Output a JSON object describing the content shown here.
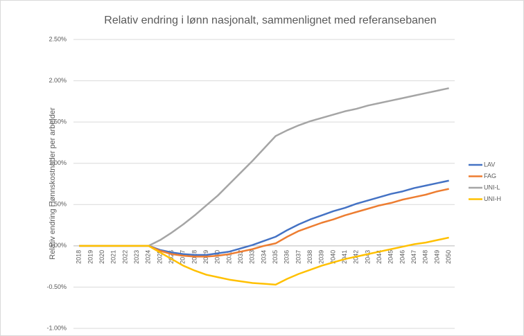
{
  "chart_data": {
    "type": "line",
    "title": "Relativ endring i lønn nasjonalt, sammenlignet med referansebanen",
    "y_label": "Relativ endring i lønnskostnader per arbeider",
    "categories": [
      "2018",
      "2019",
      "2020",
      "2021",
      "2022",
      "2023",
      "2024",
      "2025",
      "2026",
      "2027",
      "2028",
      "2029",
      "2030",
      "2031",
      "2032",
      "2033",
      "2034",
      "2035",
      "2036",
      "2037",
      "2038",
      "2039",
      "2040",
      "2041",
      "2042",
      "2043",
      "2044",
      "2045",
      "2046",
      "2047",
      "2048",
      "2049",
      "2050"
    ],
    "series": [
      {
        "name": "LAV",
        "color": "#4472c4",
        "values": [
          0,
          0,
          0,
          0,
          0,
          0,
          0,
          -0.05,
          -0.08,
          -0.1,
          -0.11,
          -0.11,
          -0.09,
          -0.07,
          -0.03,
          0.01,
          0.06,
          0.11,
          0.19,
          0.26,
          0.32,
          0.37,
          0.42,
          0.46,
          0.51,
          0.55,
          0.59,
          0.63,
          0.66,
          0.7,
          0.73,
          0.76,
          0.79
        ]
      },
      {
        "name": "FAG",
        "color": "#ed7d31",
        "values": [
          0,
          0,
          0,
          0,
          0,
          0,
          0,
          -0.06,
          -0.1,
          -0.12,
          -0.13,
          -0.13,
          -0.12,
          -0.1,
          -0.07,
          -0.04,
          0.0,
          0.03,
          0.11,
          0.18,
          0.23,
          0.28,
          0.32,
          0.37,
          0.41,
          0.45,
          0.49,
          0.52,
          0.56,
          0.59,
          0.62,
          0.66,
          0.69
        ]
      },
      {
        "name": "UNI-L",
        "color": "#a5a5a5",
        "values": [
          0,
          0,
          0,
          0,
          0,
          0,
          0,
          0.07,
          0.16,
          0.26,
          0.37,
          0.49,
          0.61,
          0.75,
          0.89,
          1.03,
          1.18,
          1.33,
          1.4,
          1.46,
          1.51,
          1.55,
          1.59,
          1.63,
          1.66,
          1.7,
          1.73,
          1.76,
          1.79,
          1.82,
          1.85,
          1.88,
          1.91
        ]
      },
      {
        "name": "UNI-H",
        "color": "#ffc000",
        "values": [
          0,
          0,
          0,
          0,
          0,
          0,
          0,
          -0.08,
          -0.16,
          -0.24,
          -0.3,
          -0.35,
          -0.38,
          -0.41,
          -0.43,
          -0.45,
          -0.46,
          -0.47,
          -0.4,
          -0.34,
          -0.29,
          -0.24,
          -0.2,
          -0.16,
          -0.13,
          -0.1,
          -0.07,
          -0.04,
          -0.01,
          0.02,
          0.04,
          0.07,
          0.1
        ]
      }
    ],
    "ylim": [
      -1.0,
      2.5
    ],
    "yticks": [
      {
        "value": -1.0,
        "label": "-1.00%"
      },
      {
        "value": -0.5,
        "label": "-0.50%"
      },
      {
        "value": 0,
        "label": "0.00%"
      },
      {
        "value": 0.5,
        "label": "0.50%"
      },
      {
        "value": 1.0,
        "label": "1.00%"
      },
      {
        "value": 1.5,
        "label": "1.50%"
      },
      {
        "value": 2.0,
        "label": "2.00%"
      },
      {
        "value": 2.5,
        "label": "2.50%"
      }
    ],
    "grid": true,
    "legend": "right"
  }
}
